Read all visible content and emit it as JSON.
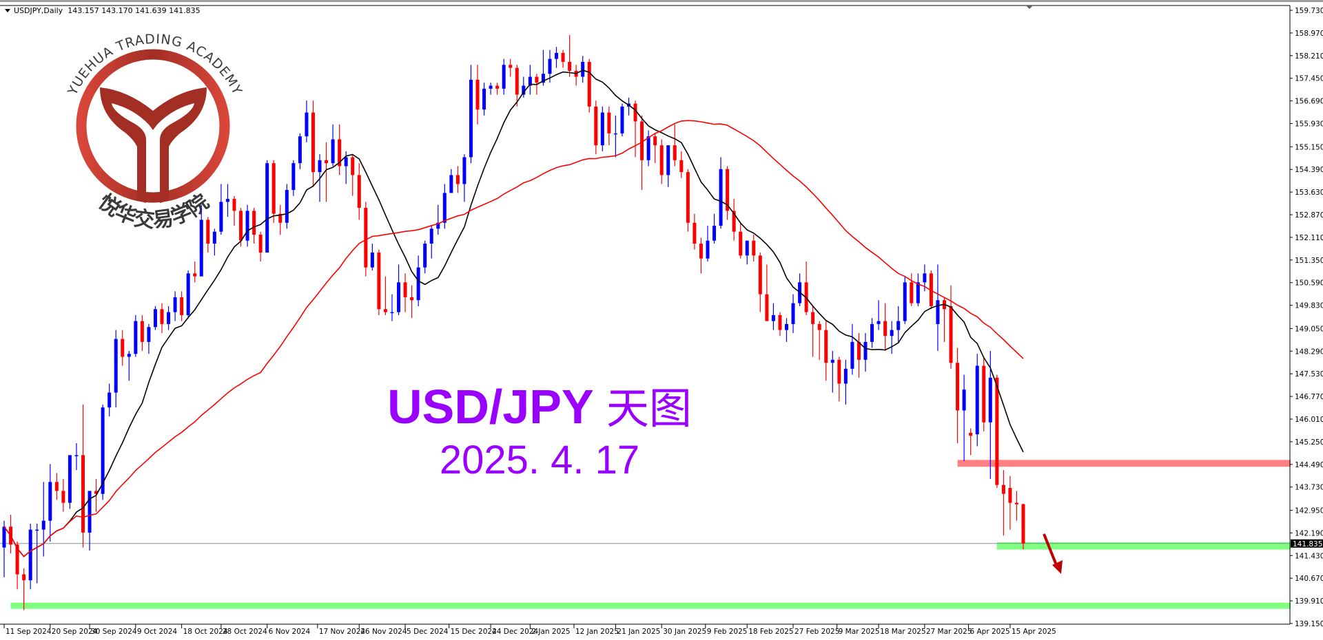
{
  "header": {
    "symbol": "USDJPY,Daily",
    "ohlc": "143.157 143.170 141.639 141.835"
  },
  "annotation": {
    "title": "USD/JPY",
    "title_cn": "天图",
    "date": "2025. 4. 17"
  },
  "logo": {
    "text_en": "YUEHUA TRADING ACADEMY",
    "text_cn": "悦华交易学院"
  },
  "colors": {
    "bull": "#0000ff",
    "bear": "#ff0000",
    "fast_ma": "#000000",
    "slow_ma": "#ff0000",
    "resistance_zone": "#ff8080",
    "support_zone": "#80ff80",
    "arrow": "#c00000",
    "annotation": "#9900ff"
  },
  "chart_data": {
    "type": "candlestick",
    "title": "USDJPY,Daily",
    "ylim": [
      139.15,
      159.73
    ],
    "grid": false,
    "current_price": "141.835",
    "y_ticks": [
      "159.730",
      "158.970",
      "158.210",
      "157.450",
      "156.690",
      "155.930",
      "155.150",
      "154.390",
      "153.630",
      "152.870",
      "152.110",
      "151.350",
      "150.590",
      "149.830",
      "149.050",
      "148.290",
      "147.530",
      "146.770",
      "146.010",
      "145.250",
      "144.490",
      "143.730",
      "142.950",
      "142.190",
      "141.430",
      "140.670",
      "139.910",
      "139.150"
    ],
    "x_ticks": [
      "11 Sep 2024",
      "20 Sep 2024",
      "30 Sep 2024",
      "9 Oct 2024",
      "18 Oct 2024",
      "28 Oct 2024",
      "6 Nov 2024",
      "17 Nov 2024",
      "26 Nov 2024",
      "5 Dec 2024",
      "15 Dec 2024",
      "24 Dec 2024",
      "2 Jan 2025",
      "12 Jan 2025",
      "21 Jan 2025",
      "30 Jan 2025",
      "9 Feb 2025",
      "18 Feb 2025",
      "27 Feb 2025",
      "9 Mar 2025",
      "18 Mar 2025",
      "27 Mar 2025",
      "6 Apr 2025",
      "15 Apr 2025"
    ],
    "indicators": [
      {
        "type": "sma",
        "period": 10,
        "color": "#000000"
      },
      {
        "type": "sma",
        "period": 40,
        "color": "#ff0000"
      }
    ],
    "zones": [
      {
        "kind": "resistance",
        "from_date": "2025-04-03",
        "price_low": 144.41,
        "price_high": 144.64,
        "color": "#ff8080"
      },
      {
        "kind": "support",
        "from_date": "2025-04-11",
        "price_low": 141.63,
        "price_high": 141.88,
        "color": "#80ff80"
      },
      {
        "kind": "support",
        "from_date": "2024-09-12",
        "price_low": 139.64,
        "price_high": 139.85,
        "color": "#80ff80"
      }
    ],
    "arrow": {
      "direction": "down",
      "from_date": "2025-04-17"
    },
    "bars": [
      [
        "2024-09-11",
        141.7,
        142.6,
        140.7,
        142.4
      ],
      [
        "2024-09-12",
        142.4,
        142.8,
        141.5,
        141.8
      ],
      [
        "2024-09-13",
        141.8,
        141.9,
        140.3,
        140.8
      ],
      [
        "2024-09-16",
        140.8,
        141.0,
        139.6,
        140.6
      ],
      [
        "2024-09-17",
        140.6,
        142.5,
        140.3,
        142.3
      ],
      [
        "2024-09-18",
        142.3,
        142.5,
        140.5,
        142.3
      ],
      [
        "2024-09-19",
        142.3,
        143.9,
        141.4,
        142.6
      ],
      [
        "2024-09-20",
        142.6,
        144.5,
        141.9,
        143.9
      ],
      [
        "2024-09-23",
        143.9,
        144.2,
        143.3,
        143.6
      ],
      [
        "2024-09-24",
        143.6,
        144.0,
        142.9,
        143.2
      ],
      [
        "2024-09-25",
        143.2,
        144.8,
        143.0,
        144.8
      ],
      [
        "2024-09-26",
        144.8,
        145.2,
        144.3,
        144.8
      ],
      [
        "2024-09-27",
        144.8,
        146.5,
        141.7,
        142.2
      ],
      [
        "2024-09-30",
        142.2,
        142.8,
        141.6,
        143.6
      ],
      [
        "2024-10-01",
        143.6,
        144.0,
        142.9,
        143.5
      ],
      [
        "2024-10-02",
        143.5,
        146.5,
        143.3,
        146.4
      ],
      [
        "2024-10-03",
        146.4,
        147.2,
        146.1,
        146.9
      ],
      [
        "2024-10-04",
        146.9,
        149.0,
        146.4,
        148.7
      ],
      [
        "2024-10-07",
        148.7,
        149.0,
        147.8,
        148.1
      ],
      [
        "2024-10-08",
        148.1,
        148.3,
        147.3,
        148.2
      ],
      [
        "2024-10-09",
        148.2,
        149.5,
        148.1,
        149.3
      ],
      [
        "2024-10-10",
        149.3,
        149.5,
        148.3,
        148.6
      ],
      [
        "2024-10-11",
        148.6,
        149.2,
        148.2,
        149.1
      ],
      [
        "2024-10-14",
        149.1,
        149.8,
        149.0,
        149.7
      ],
      [
        "2024-10-15",
        149.7,
        149.9,
        148.9,
        149.2
      ],
      [
        "2024-10-16",
        149.2,
        149.8,
        149.0,
        149.6
      ],
      [
        "2024-10-17",
        149.6,
        150.3,
        149.3,
        150.1
      ],
      [
        "2024-10-18",
        150.1,
        150.3,
        149.3,
        149.5
      ],
      [
        "2024-10-21",
        149.5,
        151.0,
        149.4,
        150.9
      ],
      [
        "2024-10-22",
        150.9,
        151.3,
        150.6,
        150.8
      ],
      [
        "2024-10-23",
        150.8,
        153.2,
        150.8,
        152.7
      ],
      [
        "2024-10-24",
        152.7,
        152.8,
        151.6,
        151.9
      ],
      [
        "2024-10-25",
        151.9,
        152.4,
        151.5,
        152.3
      ],
      [
        "2024-10-28",
        152.3,
        153.9,
        152.2,
        153.3
      ],
      [
        "2024-10-29",
        153.3,
        153.9,
        152.8,
        153.4
      ],
      [
        "2024-10-30",
        153.4,
        153.5,
        152.5,
        153.0
      ],
      [
        "2024-10-31",
        153.0,
        153.1,
        151.8,
        152.0
      ],
      [
        "2024-11-01",
        152.0,
        153.2,
        151.8,
        153.0
      ],
      [
        "2024-11-04",
        153.0,
        153.1,
        151.9,
        152.2
      ],
      [
        "2024-11-05",
        152.2,
        152.3,
        151.3,
        151.6
      ],
      [
        "2024-11-06",
        151.6,
        154.7,
        151.6,
        154.6
      ],
      [
        "2024-11-07",
        154.6,
        154.7,
        152.6,
        152.9
      ],
      [
        "2024-11-08",
        152.9,
        153.2,
        152.2,
        152.6
      ],
      [
        "2024-11-11",
        152.6,
        153.9,
        152.4,
        153.7
      ],
      [
        "2024-11-12",
        153.7,
        154.7,
        153.5,
        154.6
      ],
      [
        "2024-11-13",
        154.6,
        155.6,
        154.4,
        155.5
      ],
      [
        "2024-11-14",
        155.5,
        156.7,
        155.3,
        156.3
      ],
      [
        "2024-11-15",
        156.3,
        156.7,
        153.8,
        154.3
      ],
      [
        "2024-11-18",
        154.3,
        154.9,
        153.3,
        154.7
      ],
      [
        "2024-11-19",
        154.7,
        155.3,
        153.3,
        154.6
      ],
      [
        "2024-11-20",
        154.6,
        155.9,
        154.5,
        155.4
      ],
      [
        "2024-11-21",
        155.4,
        155.9,
        154.2,
        154.5
      ],
      [
        "2024-11-22",
        154.5,
        155.0,
        153.9,
        154.8
      ],
      [
        "2024-11-25",
        154.8,
        154.9,
        153.5,
        154.2
      ],
      [
        "2024-11-26",
        154.2,
        154.6,
        152.7,
        153.1
      ],
      [
        "2024-11-27",
        153.1,
        153.3,
        150.8,
        151.1
      ],
      [
        "2024-11-28",
        151.1,
        151.9,
        151.0,
        151.6
      ],
      [
        "2024-11-29",
        151.6,
        151.7,
        149.5,
        149.7
      ],
      [
        "2024-12-02",
        149.7,
        150.8,
        149.5,
        149.6
      ],
      [
        "2024-12-03",
        149.6,
        150.2,
        149.3,
        149.6
      ],
      [
        "2024-12-04",
        149.6,
        151.2,
        149.5,
        150.6
      ],
      [
        "2024-12-05",
        150.6,
        150.9,
        149.6,
        150.1
      ],
      [
        "2024-12-06",
        150.1,
        150.5,
        149.4,
        150.0
      ],
      [
        "2024-12-09",
        150.0,
        151.5,
        149.8,
        151.1
      ],
      [
        "2024-12-10",
        151.1,
        152.0,
        150.9,
        151.9
      ],
      [
        "2024-12-11",
        151.9,
        152.5,
        151.4,
        152.4
      ],
      [
        "2024-12-12",
        152.4,
        153.2,
        152.2,
        152.6
      ],
      [
        "2024-12-13",
        152.6,
        153.9,
        152.4,
        153.6
      ],
      [
        "2024-12-16",
        153.6,
        154.4,
        153.6,
        154.2
      ],
      [
        "2024-12-17",
        154.2,
        154.5,
        153.6,
        153.9
      ],
      [
        "2024-12-18",
        153.9,
        154.9,
        153.3,
        154.8
      ],
      [
        "2024-12-19",
        154.8,
        157.9,
        154.6,
        157.4
      ],
      [
        "2024-12-20",
        157.4,
        157.9,
        155.9,
        156.4
      ],
      [
        "2024-12-23",
        156.4,
        157.3,
        156.2,
        157.1
      ],
      [
        "2024-12-24",
        157.1,
        157.3,
        156.9,
        157.2
      ],
      [
        "2024-12-25",
        157.2,
        157.3,
        156.9,
        157.1
      ],
      [
        "2024-12-26",
        157.1,
        158.1,
        156.9,
        157.9
      ],
      [
        "2024-12-27",
        157.9,
        158.1,
        157.5,
        157.8
      ],
      [
        "2024-12-30",
        157.8,
        157.9,
        156.5,
        156.9
      ],
      [
        "2024-12-31",
        156.9,
        157.5,
        156.8,
        157.2
      ],
      [
        "2025-01-02",
        157.2,
        157.9,
        156.9,
        157.5
      ],
      [
        "2025-01-03",
        157.5,
        157.6,
        156.9,
        157.3
      ],
      [
        "2025-01-06",
        157.3,
        158.4,
        157.2,
        157.6
      ],
      [
        "2025-01-07",
        157.6,
        158.4,
        157.3,
        158.1
      ],
      [
        "2025-01-08",
        158.1,
        158.5,
        157.8,
        158.3
      ],
      [
        "2025-01-09",
        158.3,
        158.4,
        157.8,
        158.0
      ],
      [
        "2025-01-10",
        158.0,
        158.9,
        157.5,
        157.7
      ],
      [
        "2025-01-13",
        157.7,
        157.9,
        157.2,
        157.5
      ],
      [
        "2025-01-14",
        157.5,
        158.2,
        157.3,
        158.0
      ],
      [
        "2025-01-15",
        158.0,
        158.1,
        156.3,
        156.5
      ],
      [
        "2025-01-16",
        156.5,
        156.7,
        154.9,
        155.2
      ],
      [
        "2025-01-17",
        155.2,
        156.5,
        155.0,
        156.3
      ],
      [
        "2025-01-20",
        156.3,
        156.5,
        155.2,
        155.6
      ],
      [
        "2025-01-21",
        155.6,
        156.2,
        154.8,
        155.6
      ],
      [
        "2025-01-22",
        155.6,
        156.6,
        155.5,
        156.5
      ],
      [
        "2025-01-23",
        156.5,
        156.8,
        156.2,
        156.6
      ],
      [
        "2025-01-24",
        156.6,
        156.7,
        154.8,
        156.0
      ],
      [
        "2025-01-27",
        156.0,
        156.2,
        153.7,
        154.7
      ],
      [
        "2025-01-28",
        154.7,
        155.7,
        154.5,
        155.5
      ],
      [
        "2025-01-29",
        155.5,
        155.6,
        154.6,
        155.2
      ],
      [
        "2025-01-30",
        155.2,
        155.4,
        153.9,
        154.2
      ],
      [
        "2025-01-31",
        154.2,
        155.2,
        153.8,
        155.2
      ],
      [
        "2025-02-03",
        155.2,
        155.9,
        154.5,
        154.7
      ],
      [
        "2025-02-04",
        154.7,
        155.0,
        154.1,
        154.3
      ],
      [
        "2025-02-05",
        154.3,
        154.4,
        152.3,
        152.6
      ],
      [
        "2025-02-06",
        152.6,
        152.9,
        151.7,
        151.9
      ],
      [
        "2025-02-07",
        151.9,
        152.1,
        150.9,
        151.4
      ],
      [
        "2025-02-10",
        151.4,
        152.5,
        151.3,
        152.0
      ],
      [
        "2025-02-11",
        152.0,
        152.9,
        151.9,
        152.5
      ],
      [
        "2025-02-12",
        152.5,
        154.8,
        152.4,
        154.4
      ],
      [
        "2025-02-13",
        154.4,
        154.5,
        152.7,
        153.0
      ],
      [
        "2025-02-14",
        153.0,
        153.4,
        152.0,
        152.3
      ],
      [
        "2025-02-17",
        152.3,
        152.6,
        151.4,
        151.5
      ],
      [
        "2025-02-18",
        151.5,
        152.0,
        151.2,
        152.0
      ],
      [
        "2025-02-19",
        152.0,
        152.2,
        151.3,
        151.5
      ],
      [
        "2025-02-20",
        151.5,
        151.6,
        149.6,
        150.2
      ],
      [
        "2025-02-21",
        150.2,
        151.2,
        149.3,
        149.3
      ],
      [
        "2025-02-24",
        149.3,
        149.9,
        149.0,
        149.5
      ],
      [
        "2025-02-25",
        149.5,
        149.6,
        148.8,
        149.0
      ],
      [
        "2025-02-26",
        149.0,
        149.4,
        148.6,
        149.2
      ],
      [
        "2025-02-27",
        149.2,
        150.2,
        148.9,
        149.9
      ],
      [
        "2025-02-28",
        149.9,
        150.9,
        149.8,
        150.6
      ],
      [
        "2025-03-03",
        150.6,
        151.3,
        149.5,
        149.6
      ],
      [
        "2025-03-04",
        149.6,
        149.8,
        148.1,
        149.2
      ],
      [
        "2025-03-05",
        149.2,
        149.3,
        148.0,
        149.0
      ],
      [
        "2025-03-06",
        149.0,
        149.3,
        147.3,
        147.9
      ],
      [
        "2025-03-07",
        147.9,
        148.3,
        146.9,
        148.0
      ],
      [
        "2025-03-10",
        148.0,
        148.1,
        146.6,
        147.2
      ],
      [
        "2025-03-11",
        147.2,
        148.0,
        146.5,
        147.7
      ],
      [
        "2025-03-12",
        147.7,
        149.2,
        147.5,
        148.6
      ],
      [
        "2025-03-13",
        148.6,
        148.9,
        147.4,
        148.0
      ],
      [
        "2025-03-14",
        148.0,
        148.9,
        147.6,
        148.6
      ],
      [
        "2025-03-17",
        148.6,
        149.4,
        148.4,
        149.2
      ],
      [
        "2025-03-18",
        149.2,
        150.0,
        149.0,
        149.3
      ],
      [
        "2025-03-19",
        149.3,
        149.9,
        148.3,
        148.8
      ],
      [
        "2025-03-20",
        148.8,
        149.3,
        148.2,
        149.0
      ],
      [
        "2025-03-21",
        149.0,
        149.8,
        148.6,
        149.3
      ],
      [
        "2025-03-24",
        149.3,
        150.8,
        149.2,
        150.6
      ],
      [
        "2025-03-25",
        150.6,
        150.9,
        149.8,
        149.9
      ],
      [
        "2025-03-26",
        149.9,
        150.9,
        149.8,
        150.6
      ],
      [
        "2025-03-27",
        150.6,
        151.2,
        150.3,
        150.9
      ],
      [
        "2025-03-28",
        150.9,
        151.0,
        149.7,
        149.8
      ],
      [
        "2025-03-31",
        149.2,
        151.2,
        148.3,
        150.0
      ],
      [
        "2025-04-01",
        150.0,
        150.1,
        148.6,
        149.7
      ],
      [
        "2025-04-02",
        149.8,
        150.5,
        147.7,
        147.9
      ],
      [
        "2025-04-03",
        147.9,
        148.4,
        145.2,
        146.3
      ],
      [
        "2025-04-04",
        146.3,
        147.5,
        144.6,
        147.0
      ],
      [
        "2025-04-07",
        145.55,
        145.7,
        144.8,
        145.45
      ],
      [
        "2025-04-08",
        145.5,
        148.2,
        145.1,
        147.8
      ],
      [
        "2025-04-09",
        147.8,
        148.1,
        145.6,
        145.9
      ],
      [
        "2025-04-10",
        145.9,
        148.3,
        144.0,
        147.4
      ],
      [
        "2025-04-11",
        147.4,
        147.5,
        143.7,
        143.8
      ],
      [
        "2025-04-14",
        143.8,
        144.3,
        142.1,
        143.5
      ],
      [
        "2025-04-15",
        143.7,
        144.1,
        142.3,
        143.2
      ],
      [
        "2025-04-16",
        143.2,
        143.6,
        142.6,
        143.15
      ],
      [
        "2025-04-17",
        143.157,
        143.17,
        141.639,
        141.835
      ]
    ]
  }
}
